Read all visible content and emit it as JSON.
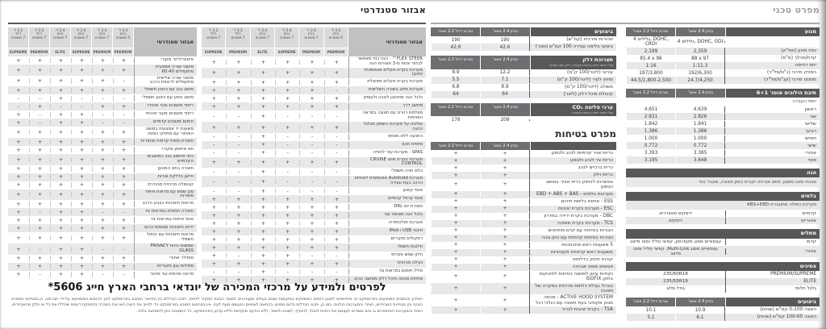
{
  "left_page": {
    "title": "אבזור סטנדרטי"
  },
  "right_page": {
    "title": "מפרט טכני"
  },
  "marks": {
    "yes": "+",
    "no": "-"
  },
  "equipment": {
    "header_label": "אבזור סטנדרטי",
    "columns": [
      {
        "engine": "2.4 ל'",
        "fuel": "בנזין",
        "seats": "5 מושבים",
        "trim": "PREMIUM"
      },
      {
        "engine": "2.4 ל'",
        "fuel": "בנזין",
        "seats": "7 מושבים",
        "trim": "PREMIUM"
      },
      {
        "engine": "2.4 ל'",
        "fuel": "בנזין",
        "seats": "7 מושבים",
        "trim": "SUPREME"
      },
      {
        "engine": "2.4 ל'",
        "fuel": "בנזין",
        "seats": "7 מושבים",
        "trim": "ELITE"
      },
      {
        "engine": "2.2 ל'",
        "fuel": "דיזל",
        "seats": "7 מושבים",
        "trim": "PREMIUM"
      },
      {
        "engine": "2.2 ל'",
        "fuel": "דיזל",
        "seats": "7 מושבים",
        "trim": "SUPREME"
      }
    ],
    "table1_rows": [
      {
        "label": "FLEX STEER™ - הגה כוח מאפשר לבחור אחת מ-3 תצורות הגה",
        "values": "++++++"
      },
      {
        "label": "מערכת בקרת אקלים אוטומטית (מזגן)",
        "values": "++++++"
      },
      {
        "label": "מערכת בקרת אקלים מפוצלת",
        "values": "++++++"
      },
      {
        "label": "מערכת מיזוג בשורה השלישית",
        "values": "-+++++"
      },
      {
        "label": "גלגל הגה מתכוונן לגובה ולעומק",
        "values": "++++++"
      },
      {
        "label": "מחשב דרך",
        "values": "++++++"
      },
      {
        "label": "מצלמת רוורס עם תצוגה במראה הפנימית",
        "values": "---+--"
      },
      {
        "label": "שליטה על מערכת השמע מגלגל ההגה",
        "values": "++++++"
      },
      {
        "label": "התנעה ללא מפתח",
        "values": "---+--"
      },
      {
        "label": "מפתח חכם",
        "values": "---+--"
      },
      {
        "label": "SPAS - מערכת עזר לחנייה",
        "values": "---+--"
      },
      {
        "label": "מערכת בקרת שיוט CRUISE CONTROL",
        "values": "++++++"
      },
      {
        "label": "בלם חניה חשמלי",
        "values": "---+--"
      },
      {
        "label": "מערכת Autohold אוטומטית לאחיזת הרכב בעת עצירה",
        "values": "---+--"
      },
      {
        "label": "פנסי קסנון",
        "values": "---+--"
      },
      {
        "label": "פנסי ערפל קדמיים",
        "values": "++++++"
      },
      {
        "label": "תאורת יום DRL",
        "values": "++++++"
      },
      {
        "label": "גלגל הגה מצופה עור",
        "values": "++++++"
      },
      {
        "label": "מערכת מולטימדיה",
        "values": "++++++"
      },
      {
        "label": "חיבור USB ו-iPod",
        "values": "++++++"
      },
      {
        "label": "רמקולים מקוריים",
        "values": "++++++"
      },
      {
        "label": "חלונות חשמל",
        "values": "++++++"
      },
      {
        "label": "חלון שמש פנורמי",
        "values": "--++-+"
      },
      {
        "label": "נעילה מרכזית",
        "values": "++++++"
      },
      {
        "label": "סליל חימום במראות צד",
        "values": "---+--"
      },
      {
        "label": "פתיחת מכסה מיכל דלק ממושב הנהג",
        "values": "++++++"
      }
    ],
    "table2_rows": [
      {
        "label": "אימוביילייזר מקורי",
        "values": "++++++"
      },
      {
        "label": "מושבי שורה אמצעית מתקפלים 60:40",
        "values": "++++++"
      },
      {
        "label": "מושבי שורה שלישית מתקפלים לרצפת הרכב",
        "values": "-+++++"
      },
      {
        "label": "מושב נהג עם כיוונון חשמלי",
        "values": "++++++"
      },
      {
        "label": "מושב נוסע עם כיוונון חשמלי",
        "values": "---+--"
      },
      {
        "label": "ריפוד מושבים מבד מהודר",
        "values": "++--+-"
      },
      {
        "label": "ריפוד מושבים מעור איכותי",
        "values": "--++-+"
      },
      {
        "label": "חימום מושבים קדמיים",
        "values": "--++-+"
      },
      {
        "label": "משענת יד אמצעית במושב האחורי עם מחזיקי כוסות",
        "values": "++++++"
      },
      {
        "label": "תאורת מפות קדמית ואחורית",
        "values": "++++++"
      },
      {
        "label": "תא איחסון מקורר",
        "values": "++++++"
      },
      {
        "label": "כיסי איחסון בגב המושבים הקדמיים",
        "values": "++++++"
      },
      {
        "label": "תאורה בתא המטען",
        "values": "++++++"
      },
      {
        "label": "חיישן הדלקת אורות",
        "values": "++++++"
      },
      {
        "label": "קונסולה מרכזית מהודרת",
        "values": "++++++"
      },
      {
        "label": "מגן שמש עם מראות איפור מוארות",
        "values": "++++++"
      },
      {
        "label": "מראות חיצוניות בצבע הרכב",
        "values": "++++++"
      },
      {
        "label": "תאורה תחתית במראות צד",
        "values": "--++-+"
      },
      {
        "label": "פנסי איתות במראות צד",
        "values": "++++++"
      },
      {
        "label": "ידיות חיצוניות מצופות כרום",
        "values": "++++++"
      },
      {
        "label": "מראות חיצוניות עם קיפול חשמלי",
        "values": "++++++"
      },
      {
        "label": "שמשות כהות PRIVACY GLASS",
        "values": "--++-+"
      },
      {
        "label": "ספוילר אחורי",
        "values": "++++++"
      },
      {
        "label": "מסילות גגון מקוריות",
        "values": "++++++"
      },
      {
        "label": "מראה פנימית נגד סינוור",
        "values": "--++-+"
      }
    ]
  },
  "spec": {
    "col_petrol": "בנזין 2.4 אוטו'",
    "col_diesel": "טורבו דיזל 2.2 אוטו'",
    "sections_right": [
      {
        "title": "מנוע",
        "cols": true,
        "rows": [
          [
            "",
            "4 גלילים, DOHC, GDI",
            "4 גלילים, DOHC, CRDI"
          ],
          [
            "נפח מנוע (סמ\"ק)",
            "2,359",
            "2,199"
          ],
          [
            "קדח/מהלך (מ\"מ)",
            "88 x 97",
            "85.4 x 96"
          ],
          [
            "יחס דחיסה",
            "1:11.3",
            "1:16"
          ],
          [
            "הספק מירבי (כ\"ס/סל\"ד)",
            "192/6,300",
            "197/3,800"
          ],
          [
            "מומנט מירבי (קג\"מ/סל\"ד)",
            "24.7/4,250",
            "44.5/1,800-2,500"
          ]
        ]
      },
      {
        "title": "תיבת הילוכים אוטו' 6+1",
        "cols": true,
        "sub": "יחסי העברה",
        "rows": [
          [
            "ראשון",
            "4.639",
            "4.651"
          ],
          [
            "שני",
            "2.826",
            "2.831"
          ],
          [
            "שלישי",
            "1.841",
            "1.842"
          ],
          [
            "רביעי",
            "1.386",
            "1.386"
          ],
          [
            "חמישי",
            "1.000",
            "1.000"
          ],
          [
            "שישי",
            "0.772",
            "0.772"
          ],
          [
            "אחורי",
            "3.385",
            "3.393"
          ],
          [
            "סופי",
            "3.648",
            "3.195"
          ]
        ]
      },
      {
        "title": "הגה",
        "merged": "סבבת ומוט משונן, סופג אנרגיה וקורס בזמן תאונה, מוגבר כוח"
      },
      {
        "title": "בלמים",
        "note": "מערכת כפולה מתוגברת ABS+EBD",
        "rows2": [
          [
            "קדמיים",
            "דיסקים מאווררים"
          ],
          [
            "אחוריים",
            "דיסקים"
          ]
        ]
      },
      {
        "title": "מתלים",
        "rows2": [
          [
            "קדמי",
            "עצמאיים מסוג מקפרסון, קפיצי סליל ומוט מייצב"
          ],
          [
            "אחורי",
            "עצמאיים מסוג Multi-Link, קפיצי סליל ומוט מייצב"
          ]
        ]
      },
      {
        "title": "צמיגים",
        "rows2": [
          [
            "PREMIUM/SUPREME",
            "235/60R18"
          ],
          [
            "ELITE",
            "235/55R19"
          ],
          [
            "גלגל חלופי",
            "גודל מלא"
          ]
        ]
      },
      {
        "title": "ביצועים",
        "cols": true,
        "rows": [
          [
            "האצה 0-100 קמ\"ש (שניות)",
            "10.9",
            "10.1"
          ],
          [
            "האצה 100-60 קמ\"ש (שניות)",
            "6.1",
            "5.1"
          ]
        ]
      }
    ],
    "sections_left": [
      {
        "title": "ביצועים",
        "cols": true,
        "rows": [
          [
            "מהירות מירבית (קמ\"ש)",
            "190",
            "190"
          ],
          [
            "ביצועי בלימה עצירה 100 קמ\"ש (מטר)",
            "42.6",
            "42.6"
          ]
        ]
      },
      {
        "title": "תצרוכת דלק",
        "note_small": "עפ\"י נתוני היצרן בתנאי מעבדה, יתכן שוני בפועל",
        "cols": true,
        "rows": [
          [
            "עירוני (ליטר/100 ק\"מ)",
            "12.2",
            "8.9"
          ],
          [
            "מחוץ לעיר (ליטר/100 ק\"מ)",
            "7.1",
            "5.5"
          ],
          [
            "משולב (ליטר/100 ק\"מ)",
            "8.9",
            "6.8"
          ],
          [
            "קיבולת מיכל דלק (ליטר)",
            "64",
            "64"
          ]
        ]
      },
      {
        "title": "ערכי פליטה CO₂",
        "note_small": "עפ\"י נתוני היצרן בתנאי מעבדה",
        "cols": true,
        "rows": [
          [
            "",
            "208",
            "178"
          ]
        ]
      }
    ]
  },
  "safety": {
    "title": "מפרט בטיחות",
    "col_petrol": "בנזין 2.4 אוטו'",
    "col_diesel": "טורבו דיזל 2.2 אוטו'",
    "rows": [
      {
        "label": "כריות אויר קדמיות לנהג ולנוסע",
        "petrol": "+",
        "diesel": "+"
      },
      {
        "label": "כריות צד לנהג ולנוסע",
        "petrol": "+",
        "diesel": "+"
      },
      {
        "label": "כרית ברכיים לנהג",
        "petrol": "+",
        "diesel": "+"
      },
      {
        "label": "כריות וילון",
        "petrol": "+",
        "diesel": "+"
      },
      {
        "label": "אפשרות לניתוק כרית אוויר במושב הנוסע",
        "petrol": "+",
        "diesel": "+"
      },
      {
        "label": "מערכות בלמים - EBD + ABS + BAS",
        "petrol": "+",
        "diesel": "+"
      },
      {
        "label": "ESS - איתות בלימת חירום",
        "petrol": "+",
        "diesel": "+"
      },
      {
        "label": "ESC - מערכת בקרת יציבות",
        "petrol": "+",
        "diesel": "+"
      },
      {
        "label": "DBC - מערכת בקרת ירידה במדרון",
        "petrol": "+",
        "diesel": "+"
      },
      {
        "label": "TCS - מערכת בקרת משיכה",
        "petrol": "+",
        "diesel": "+"
      },
      {
        "label": "חגורות בטיחות עם קדם מותחנים",
        "petrol": "+",
        "diesel": "+"
      },
      {
        "label": "חגורות בטיחות קדמיות עם כיוון גובה",
        "petrol": "+",
        "diesel": "+"
      },
      {
        "label": "5 משענות ראש מתכווננות",
        "petrol": "+",
        "diesel": "+"
      },
      {
        "label": "משענות ראש קדמיות אקטיביות",
        "petrol": "+",
        "diesel": "+"
      },
      {
        "label": "קורות חיזוק בדלתות",
        "petrol": "+",
        "diesel": "+"
      },
      {
        "label": "פגושים סופגי אנרגיה",
        "petrol": "+",
        "diesel": "+"
      },
      {
        "label": "נקודות עיגון למושבי בטיחות לתינוקות בתקן ISOFIX",
        "petrol": "+",
        "diesel": "+"
      },
      {
        "label": "נטרול נעילת דלתות מרכזית במקרה של תאונה",
        "petrol": "+",
        "diesel": "+"
      },
      {
        "label": "ACTIVE HOOD SYSTEM - מכסה מנוע אקטיבי בעת תאונה עם הולכי רגל",
        "petrol": "+",
        "diesel": "+"
      },
      {
        "label": "TSA - בקרת יציבות לגרור",
        "petrol": "+",
        "diesel": "+"
      }
    ]
  },
  "footer": {
    "headline": "לפרטים ולמידע על מרכזי המכירה של יונדאי ברחבי הארץ חייג 5606*",
    "legal": [
      "המידע והנתונים המופיעים בפרוספקט זה מתייחסים למגוון דגמים המשווקים במקומות שונים בעולם ומעודכנים למועד הבאת המקור לדפוס. יתכנו הבדלים בין התיאור המובא בפרוספקט לבין",
      "הדגמים המשווקים על-ידי חברתנו, הן מבחינת המפרט הטכני והן מבחינת האביזרים, הציוד והמערכות הנלוות. כמו כן, יתכנו הבדלים בדגם מסוים, בהתאם לשינויים הנעשים מעת לעת. אין בפרסום",
      "המובא בפרוספקט כדי לחייב את היצרן ו/או את החברה בהספקת דגמים שיכללו את כל או חלק מהאביזרים, הציוד והמערכות המתוארים בו והם שומרים לעצמם את הזכות לבטל, להוסיף, לשנות",
      "ולשפר, ללא הודעה מוקדמת וללא עדכון הפרוספקט. כל התמונות הינן להמחשה בלבד."
    ]
  }
}
